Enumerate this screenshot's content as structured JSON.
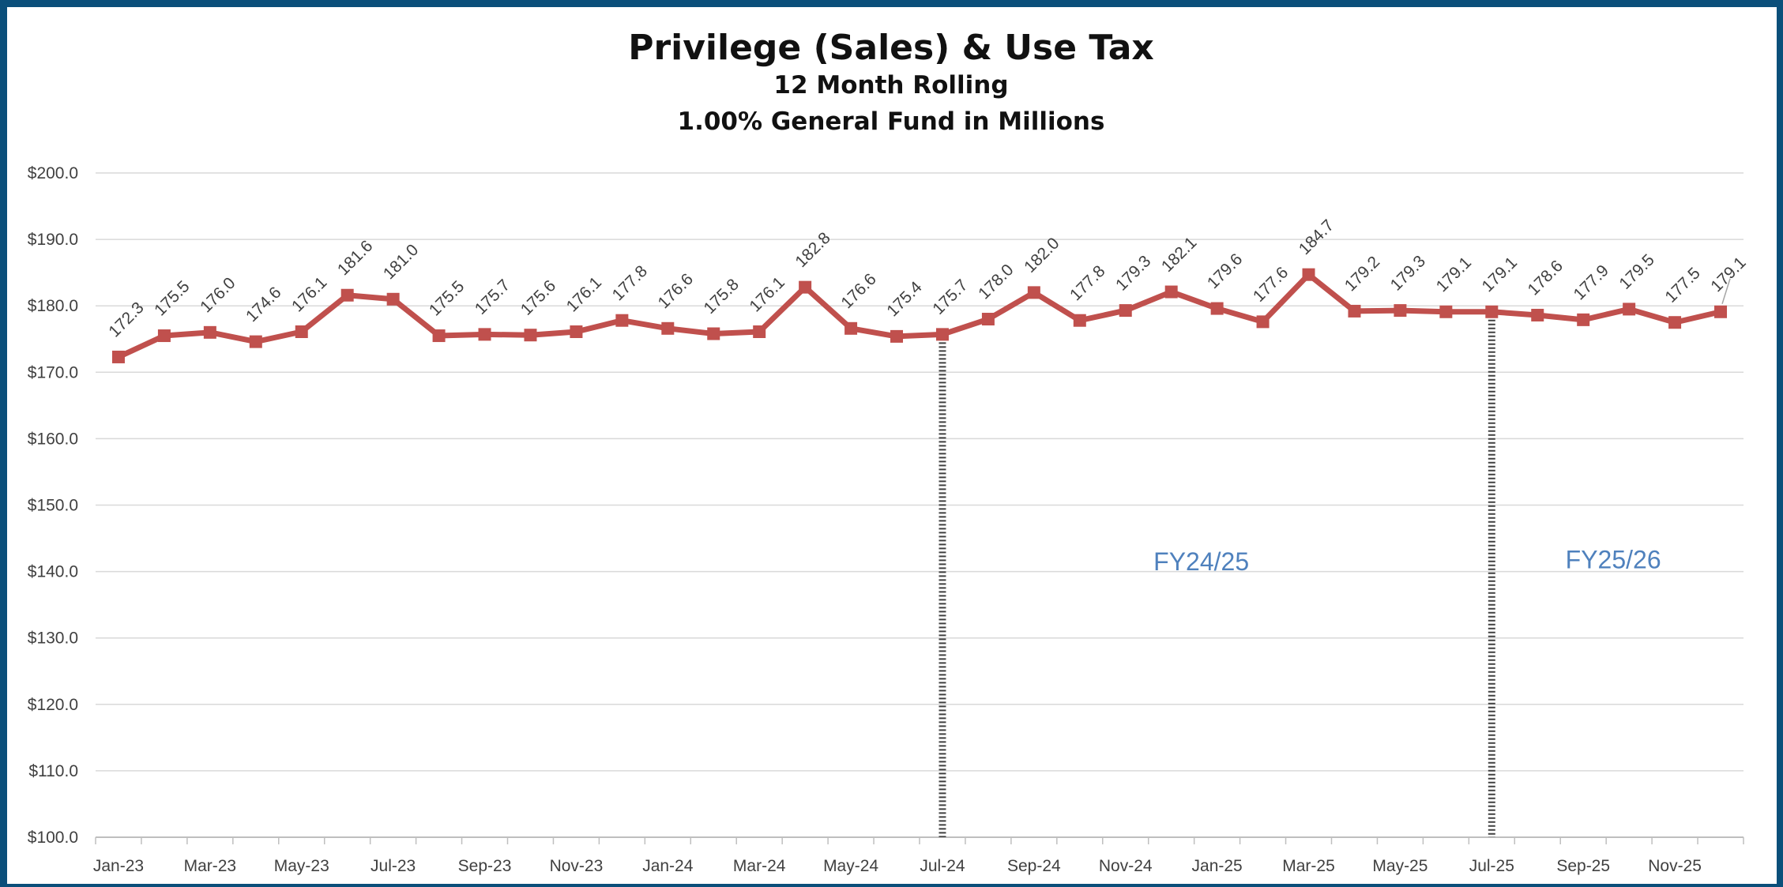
{
  "chart_data": {
    "type": "line",
    "title": "Privilege (Sales) & Use Tax",
    "subtitle_lines": [
      "12 Month Rolling",
      "1.00% General Fund in Millions"
    ],
    "xlabel": "",
    "ylabel": "",
    "ylim": [
      100,
      200
    ],
    "y_ticks": [
      "$100.0",
      "$110.0",
      "$120.0",
      "$130.0",
      "$140.0",
      "$150.0",
      "$160.0",
      "$170.0",
      "$180.0",
      "$190.0",
      "$200.0"
    ],
    "x": [
      "Jan-23",
      "Feb-23",
      "Mar-23",
      "Apr-23",
      "May-23",
      "Jun-23",
      "Jul-23",
      "Aug-23",
      "Sep-23",
      "Oct-23",
      "Nov-23",
      "Dec-23",
      "Jan-24",
      "Feb-24",
      "Mar-24",
      "Apr-24",
      "May-24",
      "Jun-24",
      "Jul-24",
      "Aug-24",
      "Sep-24",
      "Oct-24",
      "Nov-24",
      "Dec-24",
      "Jan-25",
      "Feb-25",
      "Mar-25",
      "Apr-25",
      "May-25",
      "Jun-25",
      "Jul-25",
      "Aug-25",
      "Sep-25",
      "Oct-25",
      "Nov-25",
      "Dec-25"
    ],
    "x_tick_labels": [
      "Jan-23",
      "Mar-23",
      "May-23",
      "Jul-23",
      "Sep-23",
      "Nov-23",
      "Jan-24",
      "Mar-24",
      "May-24",
      "Jul-24",
      "Sep-24",
      "Nov-24",
      "Jan-25",
      "Mar-25",
      "May-25",
      "Jul-25",
      "Sep-25",
      "Nov-25"
    ],
    "series": [
      {
        "values": [
          172.3,
          175.5,
          176.0,
          174.6,
          176.1,
          181.6,
          181.0,
          175.5,
          175.7,
          175.6,
          176.1,
          177.8,
          176.6,
          175.8,
          176.1,
          182.8,
          176.6,
          175.4,
          175.7,
          178.0,
          182.0,
          177.8,
          179.3,
          182.1,
          179.6,
          177.6,
          184.7,
          179.2,
          179.3,
          179.1,
          179.1,
          178.6,
          177.9,
          179.5,
          177.5,
          179.1
        ],
        "data_labels": [
          "172.3",
          "175.5",
          "176.0",
          "174.6",
          "176.1",
          "181.6",
          "181.0",
          "175.5",
          "175.7",
          "175.6",
          "176.1",
          "177.8",
          "176.6",
          "175.8",
          "176.1",
          "182.8",
          "176.6",
          "175.4",
          "175.7",
          "178.0",
          "182.0",
          "177.8",
          "179.3",
          "182.1",
          "179.6",
          "177.6",
          "184.7",
          "179.2",
          "179.3",
          "179.1",
          "179.1",
          "178.6",
          "177.9",
          "179.5",
          "177.5",
          "179.1"
        ],
        "color": "#c0504d",
        "marker": "square"
      }
    ],
    "fiscal_year_markers": [
      "Jul-24",
      "Jul-25"
    ],
    "annotations": [
      {
        "text": "FY24/25",
        "at_x": "Jan-25",
        "at_y": 141.5
      },
      {
        "text": "FY25/26",
        "at_x": "Oct-25",
        "at_y": 141.8
      }
    ],
    "annotation_color": "#4f81bd",
    "grid": true,
    "legend": "none"
  }
}
